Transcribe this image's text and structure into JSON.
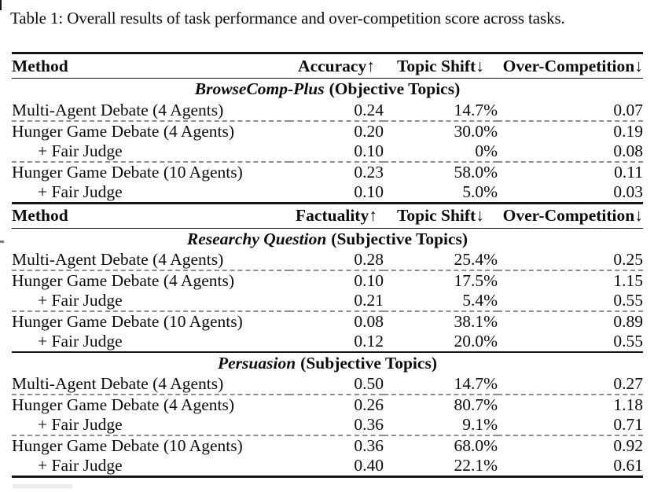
{
  "caption": "Table 1: Overall results of task performance and over-competition score across tasks.",
  "headers": [
    {
      "method": "Method",
      "metric": "Accuracy↑",
      "topic": "Topic Shift↓",
      "over": "Over-Competition↓"
    },
    {
      "method": "Method",
      "metric": "Factuality↑",
      "topic": "Topic Shift↓",
      "over": "Over-Competition↓"
    }
  ],
  "sections": [
    {
      "title": "BrowseComp-Plus",
      "subtitle": "(Objective Topics)",
      "rows": [
        {
          "method": "Multi-Agent Debate (4 Agents)",
          "metric": "0.24",
          "topic": "14.7%",
          "over": "0.07"
        },
        {
          "method": "Hunger Game Debate (4 Agents)",
          "metric": "0.20",
          "topic": "30.0%",
          "over": "0.19"
        },
        {
          "method": "+ Fair Judge",
          "metric": "0.10",
          "topic": "0%",
          "over": "0.08"
        },
        {
          "method": "Hunger Game Debate (10 Agents)",
          "metric": "0.23",
          "topic": "58.0%",
          "over": "0.11"
        },
        {
          "method": "+ Fair Judge",
          "metric": "0.10",
          "topic": "5.0%",
          "over": "0.03"
        }
      ]
    },
    {
      "title": "Researchy Question",
      "subtitle": "(Subjective Topics)",
      "rows": [
        {
          "method": "Multi-Agent Debate (4 Agents)",
          "metric": "0.28",
          "topic": "25.4%",
          "over": "0.25"
        },
        {
          "method": "Hunger Game Debate (4 Agents)",
          "metric": "0.10",
          "topic": "17.5%",
          "over": "1.15"
        },
        {
          "method": "+ Fair Judge",
          "metric": "0.21",
          "topic": "5.4%",
          "over": "0.55"
        },
        {
          "method": "Hunger Game Debate (10 Agents)",
          "metric": "0.08",
          "topic": "38.1%",
          "over": "0.89"
        },
        {
          "method": "+ Fair Judge",
          "metric": "0.12",
          "topic": "20.0%",
          "over": "0.55"
        }
      ]
    },
    {
      "title": "Persuasion",
      "subtitle": "(Subjective Topics)",
      "rows": [
        {
          "method": "Multi-Agent Debate (4 Agents)",
          "metric": "0.50",
          "topic": "14.7%",
          "over": "0.27"
        },
        {
          "method": "Hunger Game Debate (4 Agents)",
          "metric": "0.26",
          "topic": "80.7%",
          "over": "1.18"
        },
        {
          "method": "+ Fair Judge",
          "metric": "0.36",
          "topic": "9.1%",
          "over": "0.71"
        },
        {
          "method": "Hunger Game Debate (10 Agents)",
          "metric": "0.36",
          "topic": "68.0%",
          "over": "0.92"
        },
        {
          "method": "+ Fair Judge",
          "metric": "0.40",
          "topic": "22.1%",
          "over": "0.61"
        }
      ]
    }
  ],
  "colors": {
    "rule": "#161616",
    "dashed_separator": "#8f8f8f",
    "text": "#0c0c0c",
    "background": "#ffffff"
  }
}
